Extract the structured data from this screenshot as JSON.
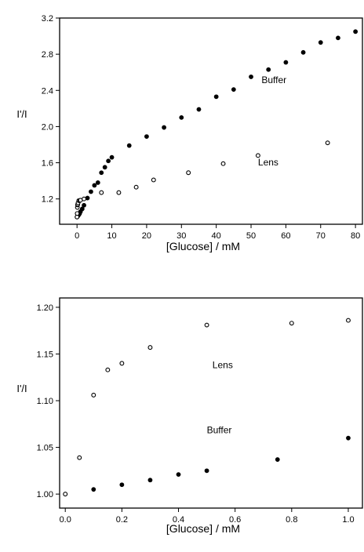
{
  "chart_data": [
    {
      "type": "scatter",
      "xlabel": "[Glucose] / mM",
      "ylabel": "I'/I",
      "xlim": [
        -5,
        82
      ],
      "ylim": [
        0.92,
        3.2
      ],
      "xticks": [
        0,
        10,
        20,
        30,
        40,
        50,
        60,
        70,
        80
      ],
      "xtick_labels": [
        "0",
        "10",
        "20",
        "30",
        "40",
        "50",
        "60",
        "70",
        "80"
      ],
      "yticks": [
        1.2,
        1.6,
        2.0,
        2.4,
        2.8,
        3.2
      ],
      "ytick_labels": [
        "1.2",
        "1.6",
        "2.0",
        "2.4",
        "2.8",
        "3.2"
      ],
      "grid": false,
      "series": [
        {
          "name": "Buffer",
          "marker": "filled",
          "x": [
            0,
            0.1,
            0.2,
            0.3,
            0.4,
            0.5,
            0.75,
            1,
            1.5,
            2,
            3,
            4,
            5,
            6,
            7,
            8,
            9,
            10,
            15,
            20,
            25,
            30,
            35,
            40,
            45,
            50,
            55,
            60,
            65,
            70,
            75,
            80
          ],
          "y": [
            1.0,
            1.005,
            1.01,
            1.015,
            1.02,
            1.025,
            1.037,
            1.06,
            1.09,
            1.13,
            1.21,
            1.28,
            1.35,
            1.38,
            1.49,
            1.55,
            1.62,
            1.66,
            1.79,
            1.89,
            1.99,
            2.1,
            2.19,
            2.33,
            2.41,
            2.55,
            2.63,
            2.71,
            2.82,
            2.93,
            2.98,
            3.05
          ]
        },
        {
          "name": "Lens",
          "marker": "open",
          "x": [
            0,
            0.05,
            0.1,
            0.15,
            0.2,
            0.3,
            0.5,
            0.8,
            1,
            2,
            7,
            12,
            17,
            22,
            32,
            42,
            52,
            72
          ],
          "y": [
            1.0,
            1.039,
            1.106,
            1.133,
            1.14,
            1.157,
            1.181,
            1.183,
            1.186,
            1.2,
            1.27,
            1.27,
            1.33,
            1.41,
            1.49,
            1.59,
            1.68,
            1.82
          ]
        }
      ]
    },
    {
      "type": "scatter",
      "xlabel": "[Glucose] / mM",
      "ylabel": "I'/I",
      "xlim": [
        -0.02,
        1.05
      ],
      "ylim": [
        0.985,
        1.21
      ],
      "xticks": [
        0,
        0.2,
        0.4,
        0.6,
        0.8,
        1.0
      ],
      "xtick_labels": [
        "0.0",
        "0.2",
        "0.4",
        "0.6",
        "0.8",
        "1.0"
      ],
      "yticks": [
        1.0,
        1.05,
        1.1,
        1.15,
        1.2
      ],
      "ytick_labels": [
        "1.00",
        "1.05",
        "1.10",
        "1.15",
        "1.20"
      ],
      "grid": false,
      "series": [
        {
          "name": "Lens",
          "marker": "open",
          "x": [
            0,
            0.05,
            0.1,
            0.15,
            0.2,
            0.3,
            0.5,
            0.8,
            1.0
          ],
          "y": [
            1.0,
            1.039,
            1.106,
            1.133,
            1.14,
            1.157,
            1.181,
            1.183,
            1.186
          ]
        },
        {
          "name": "Buffer",
          "marker": "filled",
          "x": [
            0.1,
            0.2,
            0.3,
            0.4,
            0.5,
            0.75,
            1.0
          ],
          "y": [
            1.005,
            1.01,
            1.015,
            1.021,
            1.025,
            1.037,
            1.06
          ]
        }
      ]
    }
  ]
}
